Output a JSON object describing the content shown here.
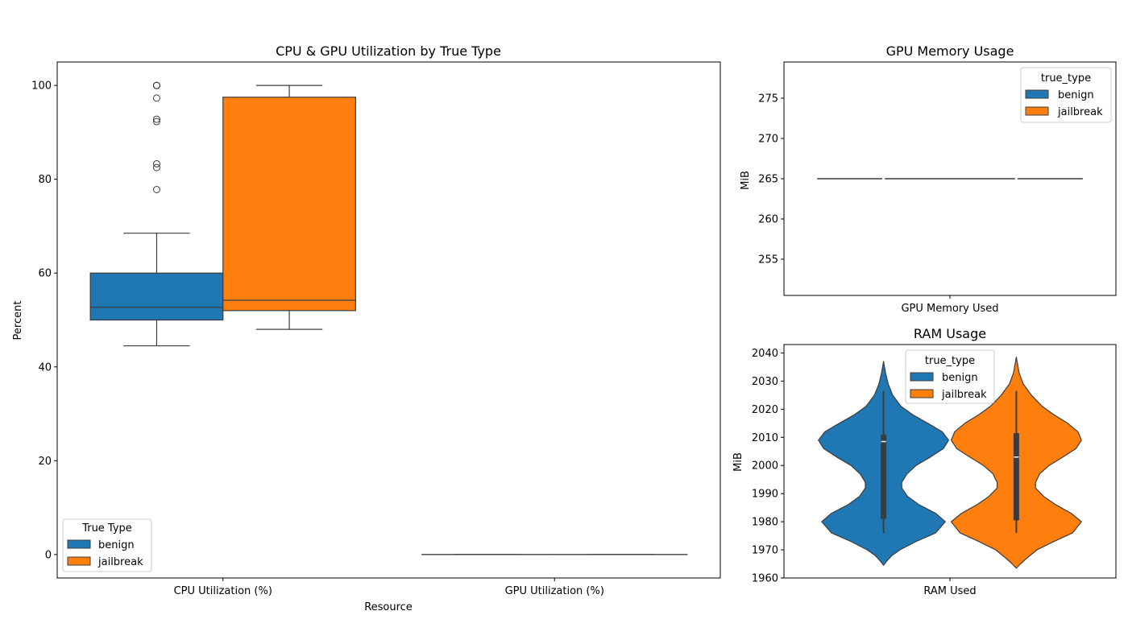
{
  "colors": {
    "benign": "#1f77b4",
    "jailbreak": "#ff7f0e",
    "edge": "#3c3c3c"
  },
  "chart_data": [
    {
      "type": "box",
      "title": "CPU & GPU Utilization by True Type",
      "xlabel": "Resource",
      "ylabel": "Percent",
      "categories": [
        "CPU Utilization (%)",
        "GPU Utilization (%)"
      ],
      "ylim": [
        -5,
        105
      ],
      "yticks": [
        "0",
        "20",
        "40",
        "60",
        "80",
        "100"
      ],
      "legend": {
        "title": "True Type",
        "position": "lower-left",
        "entries": [
          "benign",
          "jailbreak"
        ]
      },
      "series": [
        {
          "name": "benign",
          "boxes": [
            {
              "whisker_low": 44.5,
              "q1": 50.0,
              "median": 52.7,
              "q3": 60.0,
              "whisker_high": 68.5,
              "outliers": [
                77.8,
                82.5,
                83.3,
                92.3,
                92.8,
                97.3,
                100,
                100,
                100
              ]
            },
            {
              "whisker_low": 0,
              "q1": 0,
              "median": 0,
              "q3": 0,
              "whisker_high": 0,
              "outliers": []
            }
          ]
        },
        {
          "name": "jailbreak",
          "boxes": [
            {
              "whisker_low": 48.0,
              "q1": 52.0,
              "median": 54.2,
              "q3": 97.5,
              "whisker_high": 100,
              "outliers": []
            },
            {
              "whisker_low": 0,
              "q1": 0,
              "median": 0,
              "q3": 0,
              "whisker_high": 0,
              "outliers": []
            }
          ]
        }
      ]
    },
    {
      "type": "violin",
      "title": "GPU Memory Usage",
      "xlabel": "",
      "ylabel": "MiB",
      "categories": [
        "GPU Memory Used"
      ],
      "ylim": [
        250.5,
        279.5
      ],
      "yticks": [
        "255",
        "260",
        "265",
        "270",
        "275"
      ],
      "legend": {
        "title": "true_type",
        "position": "top-right",
        "entries": [
          "benign",
          "jailbreak"
        ]
      },
      "series": [
        {
          "name": "benign",
          "value": 265
        },
        {
          "name": "jailbreak",
          "value": 265
        }
      ]
    },
    {
      "type": "violin",
      "title": "RAM Usage",
      "xlabel": "",
      "ylabel": "MiB",
      "categories": [
        "RAM Used"
      ],
      "ylim": [
        1960,
        2043
      ],
      "yticks": [
        "1960",
        "1970",
        "1980",
        "1990",
        "2000",
        "2010",
        "2020",
        "2030",
        "2040"
      ],
      "legend": {
        "title": "true_type",
        "position": "top-center",
        "entries": [
          "benign",
          "jailbreak"
        ]
      },
      "series": [
        {
          "name": "benign",
          "density": [
            [
              1964.5,
              0
            ],
            [
              1966,
              0.05
            ],
            [
              1968,
              0.13
            ],
            [
              1970,
              0.25
            ],
            [
              1973,
              0.5
            ],
            [
              1976,
              0.8
            ],
            [
              1980,
              0.95
            ],
            [
              1983,
              0.8
            ],
            [
              1986,
              0.55
            ],
            [
              1989,
              0.37
            ],
            [
              1992,
              0.28
            ],
            [
              1994,
              0.28
            ],
            [
              1997,
              0.36
            ],
            [
              2000,
              0.5
            ],
            [
              2003,
              0.72
            ],
            [
              2006,
              0.92
            ],
            [
              2009,
              1.0
            ],
            [
              2012,
              0.9
            ],
            [
              2015,
              0.68
            ],
            [
              2018,
              0.45
            ],
            [
              2021,
              0.27
            ],
            [
              2025,
              0.14
            ],
            [
              2029,
              0.07
            ],
            [
              2033,
              0.03
            ],
            [
              2037,
              0.0
            ]
          ],
          "q1": 1981,
          "median": 2008.5,
          "q3": 2011,
          "whisker_low": 1976,
          "whisker_high": 2026.5
        },
        {
          "name": "jailbreak",
          "density": [
            [
              1963.5,
              0
            ],
            [
              1965,
              0.06
            ],
            [
              1967,
              0.15
            ],
            [
              1970,
              0.3
            ],
            [
              1973,
              0.55
            ],
            [
              1976,
              0.82
            ],
            [
              1980,
              0.95
            ],
            [
              1983,
              0.8
            ],
            [
              1986,
              0.58
            ],
            [
              1989,
              0.4
            ],
            [
              1992,
              0.28
            ],
            [
              1994,
              0.28
            ],
            [
              1997,
              0.34
            ],
            [
              2000,
              0.48
            ],
            [
              2003,
              0.68
            ],
            [
              2006,
              0.87
            ],
            [
              2009,
              0.95
            ],
            [
              2012,
              0.9
            ],
            [
              2015,
              0.75
            ],
            [
              2018,
              0.55
            ],
            [
              2021,
              0.38
            ],
            [
              2025,
              0.22
            ],
            [
              2029,
              0.1
            ],
            [
              2033,
              0.04
            ],
            [
              2038.5,
              0.0
            ]
          ],
          "q1": 1980.5,
          "median": 2003,
          "q3": 2011.5,
          "whisker_low": 1976,
          "whisker_high": 2026.5
        }
      ]
    }
  ]
}
